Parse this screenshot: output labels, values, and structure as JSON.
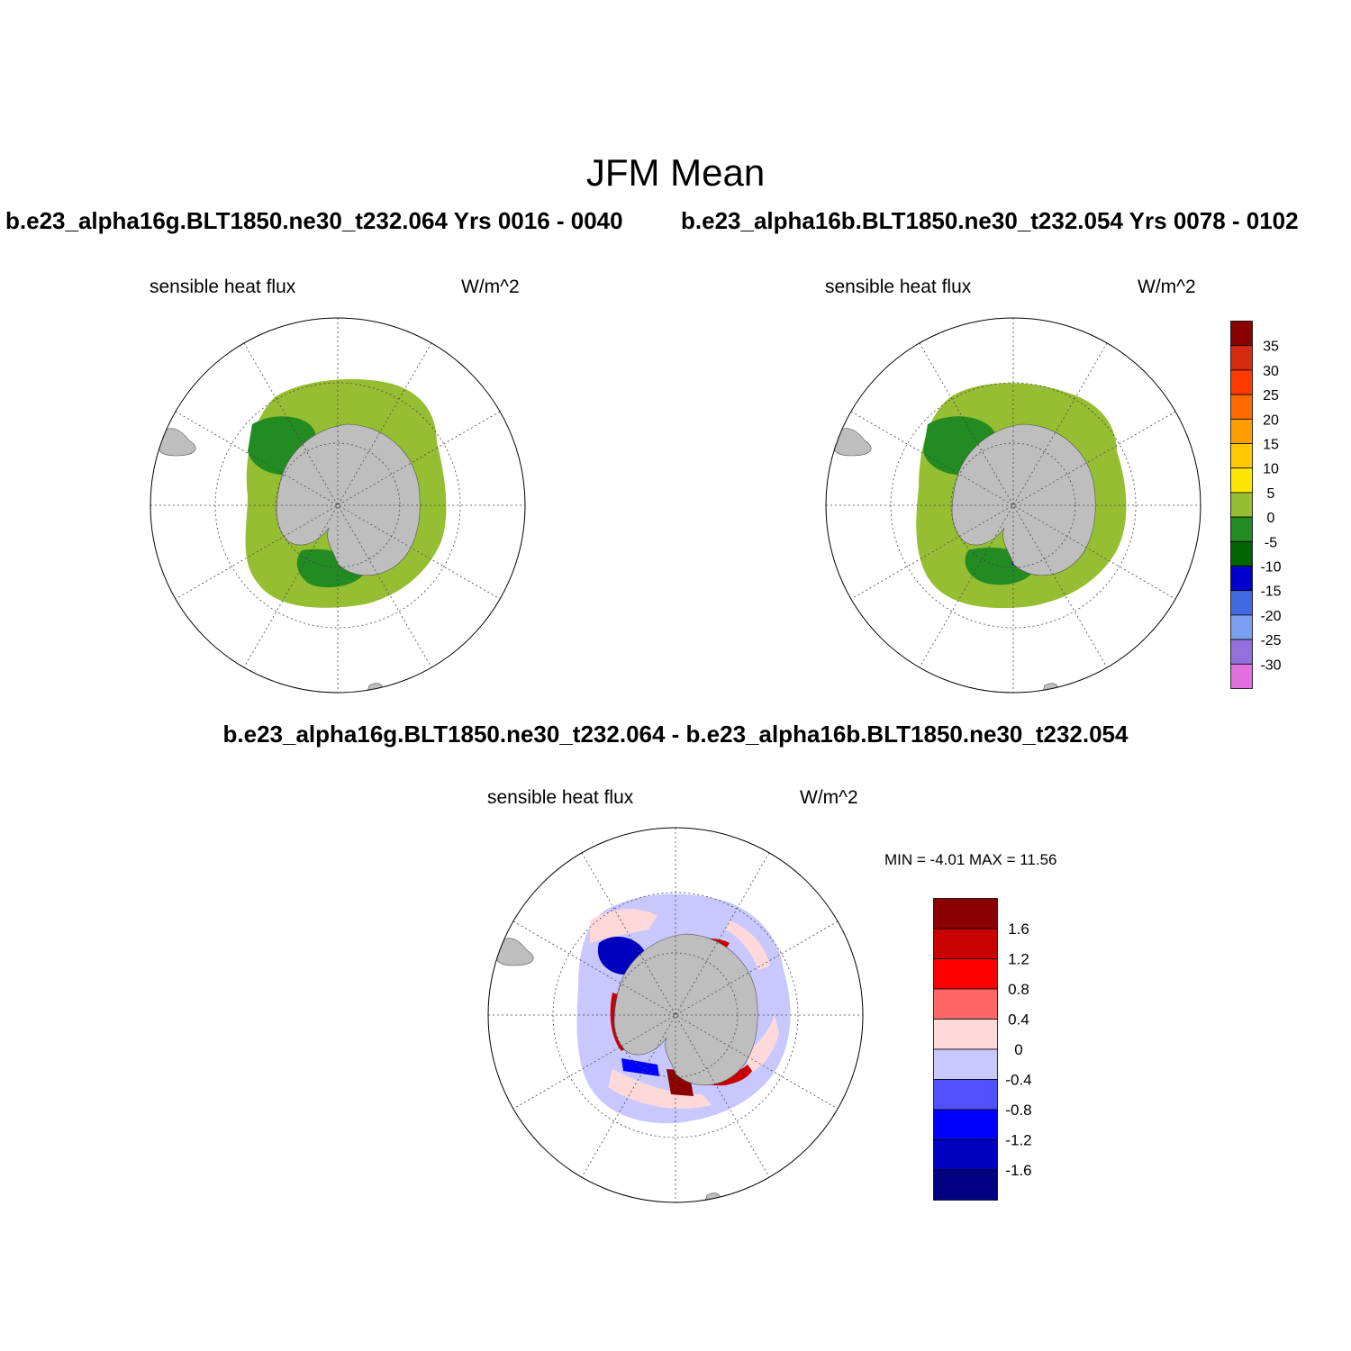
{
  "main_title": "JFM Mean",
  "left_case_title": "b.e23_alpha16g.BLT1850.ne30_t232.064  Yrs 0016 - 0040",
  "right_case_title": "b.e23_alpha16b.BLT1850.ne30_t232.054  Yrs 0078 - 0102",
  "diff_title": "b.e23_alpha16g.BLT1850.ne30_t232.064 - b.e23_alpha16b.BLT1850.ne30_t232.054",
  "panels": {
    "left": {
      "variable": "sensible heat flux",
      "units": "W/m^2"
    },
    "right": {
      "variable": "sensible heat flux",
      "units": "W/m^2"
    },
    "diff": {
      "variable": "sensible heat flux",
      "units": "W/m^2",
      "minmax": "MIN =  -4.01 MAX =  11.56"
    }
  },
  "colorbar_main": {
    "labels": [
      "35",
      "30",
      "25",
      "20",
      "15",
      "10",
      "5",
      "0",
      "-5",
      "-10",
      "-15",
      "-20",
      "-25",
      "-30"
    ],
    "colors": [
      "#8b0000",
      "#d42a0f",
      "#ff3a00",
      "#ff6a00",
      "#ff9e00",
      "#ffc800",
      "#ffe600",
      "#96be32",
      "#228b22",
      "#006400",
      "#0000cd",
      "#4169e1",
      "#7b9ff0",
      "#9370db",
      "#e070e0"
    ]
  },
  "colorbar_diff": {
    "labels": [
      "1.6",
      "1.2",
      "0.8",
      "0.4",
      "0",
      "-0.4",
      "-0.8",
      "-1.2",
      "-1.6"
    ],
    "colors": [
      "#8b0000",
      "#c80000",
      "#ff0000",
      "#ff6666",
      "#ffd9d9",
      "#c8c8ff",
      "#5050ff",
      "#0000ff",
      "#0000c0",
      "#000080"
    ]
  }
}
